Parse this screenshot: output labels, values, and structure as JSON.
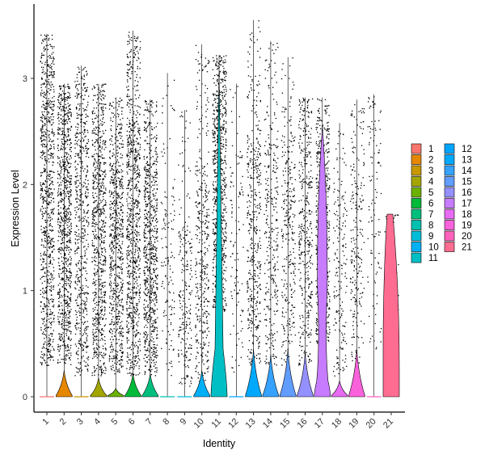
{
  "chart_data": {
    "type": "violin",
    "title": "",
    "xlabel": "Identity",
    "ylabel": "Expression Level",
    "ylim": [
      -0.15,
      3.55
    ],
    "yticks": [
      0,
      1,
      2,
      3
    ],
    "grid": false,
    "legend_position": "right",
    "categories": [
      "1",
      "2",
      "3",
      "4",
      "5",
      "6",
      "7",
      "8",
      "9",
      "10",
      "11",
      "12",
      "13",
      "14",
      "15",
      "16",
      "17",
      "18",
      "19",
      "20",
      "21"
    ],
    "colors": [
      "#F8766D",
      "#E7851E",
      "#D09400",
      "#B2A100",
      "#89AC00",
      "#45B500",
      "#00BC51",
      "#00C087",
      "#00C0B2",
      "#00BCD6",
      "#00B3F2",
      "#00A6FF",
      "#7F96FF",
      "#BC81FF",
      "#E26EF7",
      "#F863DF",
      "#FF62BF",
      "#FF6A9A",
      "#F8766D",
      "#E7851E",
      "#FF6C91"
    ],
    "violin_colors": [
      "#F8766D",
      "#E58700",
      "#C99800",
      "#A3A500",
      "#6BB100",
      "#00BA38",
      "#00BF7D",
      "#00C0AF",
      "#00BCD8",
      "#00B0F6",
      "#00BFC4",
      "#00A5FF",
      "#00A9FF",
      "#35A2FF",
      "#619CFF",
      "#9590FF",
      "#C77CFF",
      "#E76BF3",
      "#FA62DB",
      "#FF62BC",
      "#FF6C91"
    ],
    "series": [
      {
        "category": "1",
        "max": 3.42,
        "violin_top": 0.0,
        "dot_density": 0.95,
        "body": [
          0.3,
          2.9
        ]
      },
      {
        "category": "2",
        "max": 2.95,
        "violin_top": 0.25,
        "dot_density": 1.0,
        "body": [
          0.3,
          2.6
        ]
      },
      {
        "category": "3",
        "max": 3.12,
        "violin_top": 0.0,
        "dot_density": 0.65,
        "body": [
          0.2,
          2.6
        ]
      },
      {
        "category": "4",
        "max": 2.95,
        "violin_top": 0.18,
        "dot_density": 0.85,
        "body": [
          0.2,
          2.4
        ]
      },
      {
        "category": "5",
        "max": 2.82,
        "violin_top": 0.08,
        "dot_density": 0.8,
        "body": [
          0.2,
          2.2
        ]
      },
      {
        "category": "6",
        "max": 3.45,
        "violin_top": 0.22,
        "dot_density": 0.95,
        "body": [
          0.2,
          2.6
        ]
      },
      {
        "category": "7",
        "max": 2.8,
        "violin_top": 0.22,
        "dot_density": 0.85,
        "body": [
          0.2,
          2.2
        ]
      },
      {
        "category": "8",
        "max": 3.05,
        "violin_top": 0.0,
        "dot_density": 0.15,
        "body": [
          0.2,
          2.0
        ]
      },
      {
        "category": "9",
        "max": 2.7,
        "violin_top": 0.0,
        "dot_density": 0.25,
        "body": [
          0.1,
          1.6
        ]
      },
      {
        "category": "10",
        "max": 3.32,
        "violin_top": 0.25,
        "dot_density": 0.45,
        "body": [
          0.1,
          2.2
        ]
      },
      {
        "category": "11",
        "max": 3.22,
        "violin_top": 0.45,
        "dot_density": 0.85,
        "body": [
          0.8,
          2.8
        ]
      },
      {
        "category": "12",
        "max": 2.95,
        "violin_top": 0.0,
        "dot_density": 0.12,
        "body": [
          0.2,
          2.3
        ]
      },
      {
        "category": "13",
        "max": 3.55,
        "violin_top": 0.45,
        "dot_density": 0.5,
        "body": [
          0.3,
          2.4
        ]
      },
      {
        "category": "14",
        "max": 3.35,
        "violin_top": 0.4,
        "dot_density": 0.35,
        "body": [
          0.3,
          2.4
        ]
      },
      {
        "category": "15",
        "max": 3.2,
        "violin_top": 0.45,
        "dot_density": 0.35,
        "body": [
          0.3,
          2.5
        ]
      },
      {
        "category": "16",
        "max": 2.82,
        "violin_top": 0.42,
        "dot_density": 0.45,
        "body": [
          0.3,
          2.5
        ]
      },
      {
        "category": "17",
        "max": 2.82,
        "violin_top": 0.35,
        "dot_density": 0.6,
        "body": [
          0.5,
          2.4
        ]
      },
      {
        "category": "18",
        "max": 2.58,
        "violin_top": 0.15,
        "dot_density": 0.2,
        "body": [
          0.2,
          1.9
        ]
      },
      {
        "category": "19",
        "max": 2.8,
        "violin_top": 0.45,
        "dot_density": 0.25,
        "body": [
          0.3,
          2.2
        ]
      },
      {
        "category": "20",
        "max": 2.85,
        "violin_top": 0.0,
        "dot_density": 0.12,
        "body": [
          0.4,
          2.6
        ]
      },
      {
        "category": "21",
        "max": 1.72,
        "violin_top": 1.72,
        "dot_density": 0.08,
        "body": [
          0.3,
          1.7
        ]
      }
    ]
  }
}
